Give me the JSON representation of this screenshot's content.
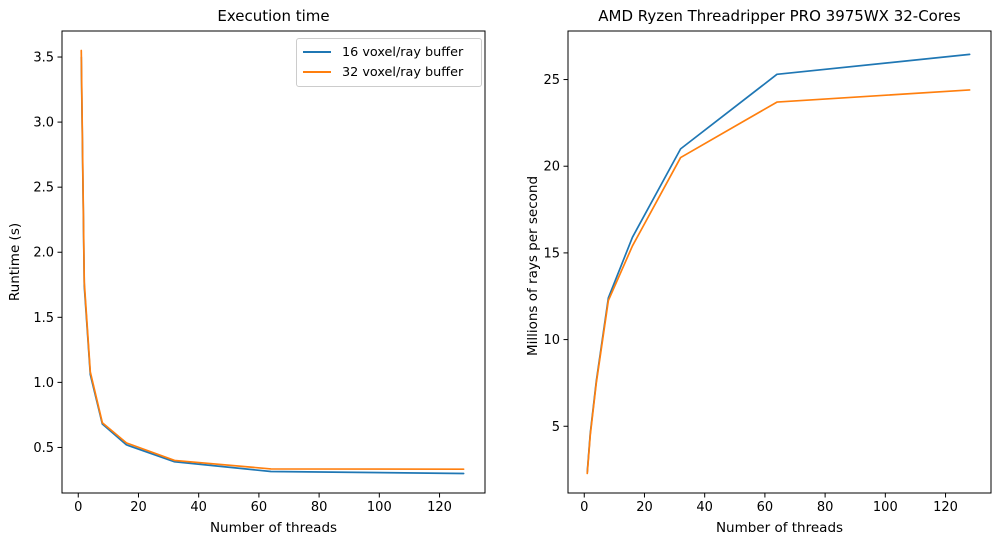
{
  "figure": {
    "background": "#ffffff",
    "text_color": "#000000",
    "left_chart": {
      "title": "Execution time",
      "xlabel": "Number of threads",
      "ylabel": "Runtime (s)"
    },
    "right_chart": {
      "title": "AMD Ryzen Threadripper PRO 3975WX 32-Cores",
      "xlabel": "Number of threads",
      "ylabel": "Millions of rays per second"
    },
    "legend": {
      "position": "upper right of left chart",
      "items": [
        {
          "label": "16 voxel/ray buffer",
          "color": "#1f77b4"
        },
        {
          "label": "32 voxel/ray buffer",
          "color": "#ff7f0e"
        }
      ]
    }
  },
  "chart_data": [
    {
      "type": "line",
      "title": "Execution time",
      "xlabel": "Number of threads",
      "ylabel": "Runtime (s)",
      "x": [
        1,
        2,
        4,
        8,
        16,
        32,
        64,
        128
      ],
      "series": [
        {
          "name": "16 voxel/ray buffer",
          "color": "#1f77b4",
          "values": [
            3.5,
            1.74,
            1.06,
            0.68,
            0.52,
            0.39,
            0.315,
            0.3
          ]
        },
        {
          "name": "32 voxel/ray buffer",
          "color": "#ff7f0e",
          "values": [
            3.55,
            1.77,
            1.08,
            0.69,
            0.535,
            0.4,
            0.335,
            0.333
          ]
        }
      ],
      "xlim": [
        -5.4,
        135.1
      ],
      "ylim": [
        0.15,
        3.7
      ],
      "xticks": [
        0,
        20,
        40,
        60,
        80,
        100,
        120
      ],
      "yticks": [
        0.5,
        1.0,
        1.5,
        2.0,
        2.5,
        3.0,
        3.5
      ],
      "grid": false,
      "legend_position": "upper right"
    },
    {
      "type": "line",
      "title": "AMD Ryzen Threadripper PRO 3975WX 32-Cores",
      "xlabel": "Number of threads",
      "ylabel": "Millions of rays per second",
      "x": [
        1,
        2,
        4,
        8,
        16,
        32,
        64,
        128
      ],
      "series": [
        {
          "name": "16 voxel/ray buffer",
          "color": "#1f77b4",
          "values": [
            2.35,
            4.6,
            7.6,
            12.4,
            15.9,
            21.0,
            25.3,
            26.45
          ]
        },
        {
          "name": "32 voxel/ray buffer",
          "color": "#ff7f0e",
          "values": [
            2.28,
            4.5,
            7.5,
            12.25,
            15.4,
            20.5,
            23.7,
            24.4
          ]
        }
      ],
      "xlim": [
        -5.4,
        135.1
      ],
      "ylim": [
        1.15,
        27.8
      ],
      "xticks": [
        0,
        20,
        40,
        60,
        80,
        100,
        120
      ],
      "yticks": [
        5,
        10,
        15,
        20,
        25
      ],
      "grid": false,
      "legend_position": "none"
    }
  ]
}
